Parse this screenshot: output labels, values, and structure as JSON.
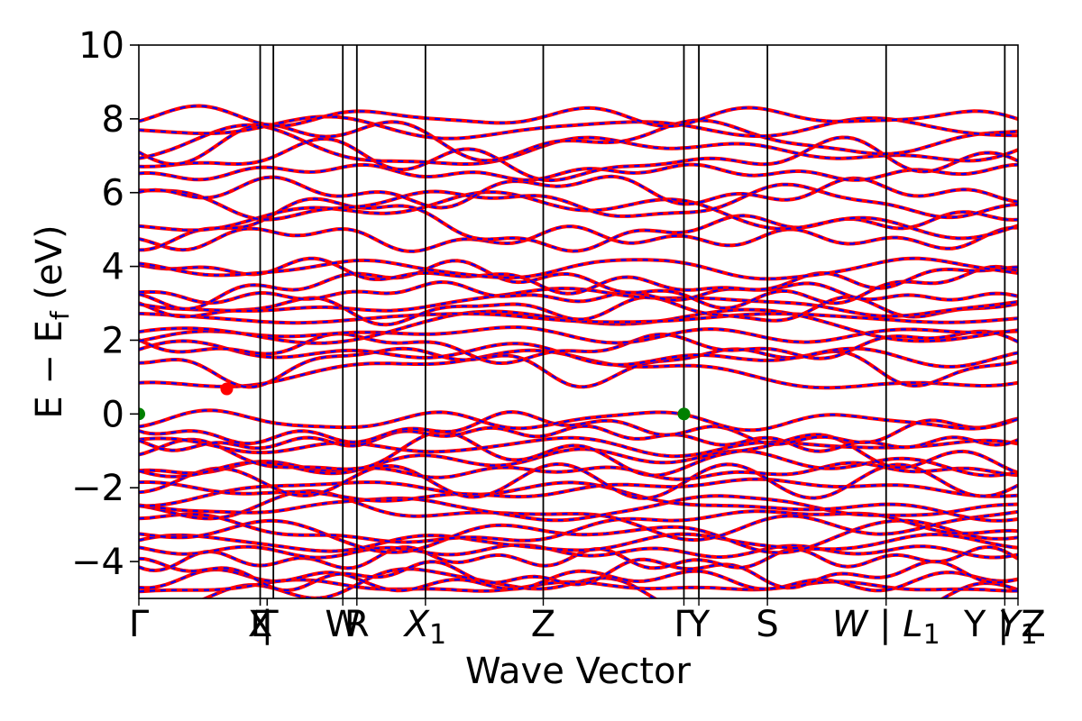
{
  "chart_data": {
    "type": "line",
    "title": "",
    "xlabel": "Wave Vector",
    "ylabel": "E − E",
    "ylabel_sub": "f",
    "ylabel_unit": " (eV)",
    "ylim": [
      -5,
      10
    ],
    "xlim": [
      0,
      10
    ],
    "yticks": [
      -4,
      -2,
      0,
      2,
      4,
      6,
      8,
      10
    ],
    "ytick_labels": [
      "−4",
      "−2",
      "0",
      "2",
      "4",
      "6",
      "8",
      "10"
    ],
    "grid": false,
    "legend": "none",
    "kpath": [
      {
        "label": "Γ",
        "sub": "",
        "x": 0.0
      },
      {
        "label": "L",
        "sub": "",
        "x": 1.38
      },
      {
        "label": "X",
        "sub": "",
        "x": 1.38
      },
      {
        "label": "|",
        "sub": "",
        "x": 1.46
      },
      {
        "label": "T",
        "sub": "",
        "x": 1.46
      },
      {
        "label": "W",
        "sub": "",
        "x": 2.32
      },
      {
        "label": "R",
        "sub": "",
        "x": 2.48
      },
      {
        "label": "X",
        "sub": "1",
        "x": 3.26
      },
      {
        "label": "Z",
        "sub": "",
        "x": 4.6
      },
      {
        "label": "Γ",
        "sub": "",
        "x": 6.2
      },
      {
        "label": "Y",
        "sub": "",
        "x": 6.37
      },
      {
        "label": "S",
        "sub": "",
        "x": 7.15
      },
      {
        "label": "W | L",
        "sub": "1",
        "x": 8.5
      },
      {
        "label": "Y | Z",
        "sub": "",
        "x": 9.85
      },
      {
        "label": "Y",
        "sub": "1",
        "x": 10.0
      }
    ],
    "vlines": [
      1.38,
      1.53,
      2.32,
      2.48,
      3.26,
      4.6,
      6.2,
      6.37,
      7.15,
      8.5,
      9.85
    ],
    "series": [
      {
        "role": "spin-up",
        "color": "#ff0000",
        "style": "solid"
      },
      {
        "role": "spin-down",
        "color": "#0000ff",
        "style": "dashed"
      }
    ],
    "band_extrema": [
      {
        "type": "cbm",
        "x": 1.0,
        "y": 0.68,
        "color": "#ff0000"
      },
      {
        "type": "vbm",
        "x": 0.0,
        "y": 0.0,
        "color": "#008000"
      },
      {
        "type": "vbm",
        "x": 6.2,
        "y": 0.0,
        "color": "#008000"
      }
    ],
    "band_groups": [
      {
        "center": -4.6,
        "count": 4,
        "spread": 0.35
      },
      {
        "center": -3.5,
        "count": 5,
        "spread": 0.55
      },
      {
        "center": -2.3,
        "count": 5,
        "spread": 0.6
      },
      {
        "center": -1.1,
        "count": 5,
        "spread": 0.55
      },
      {
        "center": -0.3,
        "count": 2,
        "spread": 0.25
      },
      {
        "center": 1.5,
        "count": 4,
        "spread": 0.45
      },
      {
        "center": 2.6,
        "count": 5,
        "spread": 0.55
      },
      {
        "center": 3.6,
        "count": 4,
        "spread": 0.45
      },
      {
        "center": 5.4,
        "count": 5,
        "spread": 0.8
      },
      {
        "center": 7.3,
        "count": 6,
        "spread": 0.9
      }
    ]
  }
}
